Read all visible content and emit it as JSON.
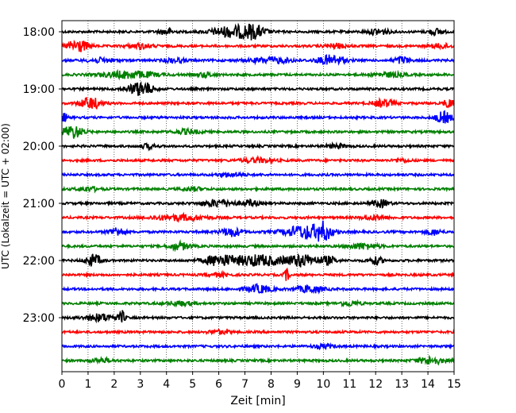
{
  "chart_data": {
    "type": "line",
    "title": "",
    "xlabel": "Zeit  [min]",
    "ylabel": "UTC (Lokalzeit = UTC + 02:00)",
    "xlim": [
      0,
      15
    ],
    "x_ticks": [
      "0",
      "1",
      "2",
      "3",
      "4",
      "5",
      "6",
      "7",
      "8",
      "9",
      "10",
      "11",
      "12",
      "13",
      "14",
      "15"
    ],
    "grid": "vertical dotted lines at each minute",
    "row_count": 24,
    "row_interval_min": 15,
    "row_colors_cycle": [
      "#000000",
      "#ff0000",
      "#0000ff",
      "#008000"
    ],
    "y_ticks": [
      {
        "row": 0,
        "label": "18:00"
      },
      {
        "row": 4,
        "label": "19:00"
      },
      {
        "row": 8,
        "label": "20:00"
      },
      {
        "row": 12,
        "label": "21:00"
      },
      {
        "row": 16,
        "label": "22:00"
      },
      {
        "row": 20,
        "label": "23:00"
      }
    ],
    "traces": [
      {
        "time": "18:00",
        "color": "#000000",
        "bursts": [
          [
            4.0,
            0.3,
            0.4
          ],
          [
            6.4,
            0.7,
            0.7
          ],
          [
            7.3,
            0.5,
            0.9
          ],
          [
            12.1,
            0.4,
            0.4
          ],
          [
            14.3,
            0.3,
            0.4
          ]
        ]
      },
      {
        "time": "18:15",
        "color": "#ff0000",
        "bursts": [
          [
            0.6,
            0.4,
            0.9
          ],
          [
            3.0,
            0.5,
            0.3
          ],
          [
            10.5,
            0.4,
            0.3
          ],
          [
            14.5,
            0.4,
            0.3
          ]
        ]
      },
      {
        "time": "18:30",
        "color": "#0000ff",
        "bursts": [
          [
            1.5,
            0.5,
            0.3
          ],
          [
            4.3,
            0.4,
            0.3
          ],
          [
            8.0,
            0.8,
            0.4
          ],
          [
            10.3,
            0.5,
            0.7
          ],
          [
            13.0,
            0.3,
            0.5
          ]
        ]
      },
      {
        "time": "18:45",
        "color": "#008000",
        "bursts": [
          [
            2.6,
            1.0,
            0.5
          ],
          [
            5.5,
            0.3,
            0.3
          ],
          [
            12.5,
            0.6,
            0.3
          ]
        ]
      },
      {
        "time": "19:00",
        "color": "#000000",
        "bursts": [
          [
            2.9,
            0.5,
            0.7
          ],
          [
            3.2,
            0.3,
            0.4
          ]
        ]
      },
      {
        "time": "19:15",
        "color": "#ff0000",
        "bursts": [
          [
            1.1,
            0.4,
            0.8
          ],
          [
            12.3,
            0.4,
            0.5
          ],
          [
            14.8,
            0.2,
            0.6
          ]
        ]
      },
      {
        "time": "19:30",
        "color": "#0000ff",
        "bursts": [
          [
            0.1,
            0.1,
            0.6
          ],
          [
            14.6,
            0.3,
            0.8
          ]
        ]
      },
      {
        "time": "19:45",
        "color": "#008000",
        "bursts": [
          [
            0.4,
            0.4,
            0.9
          ],
          [
            4.8,
            0.5,
            0.3
          ]
        ]
      },
      {
        "time": "20:00",
        "color": "#000000",
        "bursts": [
          [
            3.3,
            0.3,
            0.3
          ],
          [
            10.5,
            0.4,
            0.25
          ]
        ]
      },
      {
        "time": "20:15",
        "color": "#ff0000",
        "bursts": [
          [
            7.5,
            0.6,
            0.3
          ],
          [
            13.0,
            0.3,
            0.2
          ]
        ]
      },
      {
        "time": "20:30",
        "color": "#0000ff",
        "bursts": [
          [
            6.5,
            0.5,
            0.25
          ]
        ]
      },
      {
        "time": "20:45",
        "color": "#008000",
        "bursts": [
          [
            1.0,
            0.4,
            0.3
          ],
          [
            5.0,
            0.4,
            0.25
          ]
        ]
      },
      {
        "time": "21:00",
        "color": "#000000",
        "bursts": [
          [
            6.0,
            0.6,
            0.5
          ],
          [
            7.2,
            0.3,
            0.4
          ],
          [
            12.2,
            0.3,
            0.5
          ]
        ]
      },
      {
        "time": "21:15",
        "color": "#ff0000",
        "bursts": [
          [
            4.5,
            1.0,
            0.4
          ],
          [
            12.0,
            0.5,
            0.3
          ]
        ]
      },
      {
        "time": "21:30",
        "color": "#0000ff",
        "bursts": [
          [
            2.1,
            0.3,
            0.6
          ],
          [
            6.5,
            0.4,
            0.6
          ],
          [
            9.3,
            0.8,
            0.9
          ],
          [
            10.0,
            0.3,
            1.0
          ],
          [
            14.2,
            0.3,
            0.4
          ]
        ]
      },
      {
        "time": "21:45",
        "color": "#008000",
        "bursts": [
          [
            4.5,
            0.4,
            0.5
          ],
          [
            11.5,
            0.6,
            0.4
          ]
        ]
      },
      {
        "time": "22:00",
        "color": "#000000",
        "bursts": [
          [
            1.2,
            0.3,
            0.8
          ],
          [
            6.0,
            0.6,
            0.7
          ],
          [
            7.5,
            1.0,
            0.75
          ],
          [
            9.2,
            0.6,
            0.8
          ],
          [
            10.2,
            0.3,
            0.5
          ],
          [
            12.0,
            0.3,
            0.5
          ]
        ]
      },
      {
        "time": "22:15",
        "color": "#ff0000",
        "bursts": [
          [
            8.6,
            0.1,
            0.8
          ],
          [
            6.0,
            0.4,
            0.25
          ]
        ]
      },
      {
        "time": "22:30",
        "color": "#0000ff",
        "bursts": [
          [
            7.5,
            0.5,
            0.55
          ],
          [
            9.5,
            0.5,
            0.5
          ]
        ]
      },
      {
        "time": "22:45",
        "color": "#008000",
        "bursts": [
          [
            4.5,
            0.5,
            0.3
          ],
          [
            11.0,
            0.4,
            0.3
          ]
        ]
      },
      {
        "time": "23:00",
        "color": "#000000",
        "bursts": [
          [
            1.5,
            0.6,
            0.5
          ],
          [
            2.3,
            0.1,
            0.9
          ]
        ]
      },
      {
        "time": "23:15",
        "color": "#ff0000",
        "bursts": [
          [
            6.0,
            0.4,
            0.25
          ]
        ]
      },
      {
        "time": "23:30",
        "color": "#0000ff",
        "bursts": [
          [
            10.0,
            0.4,
            0.25
          ]
        ]
      },
      {
        "time": "23:45",
        "color": "#008000",
        "bursts": [
          [
            14.1,
            0.5,
            0.5
          ],
          [
            1.5,
            0.4,
            0.3
          ]
        ]
      }
    ]
  }
}
